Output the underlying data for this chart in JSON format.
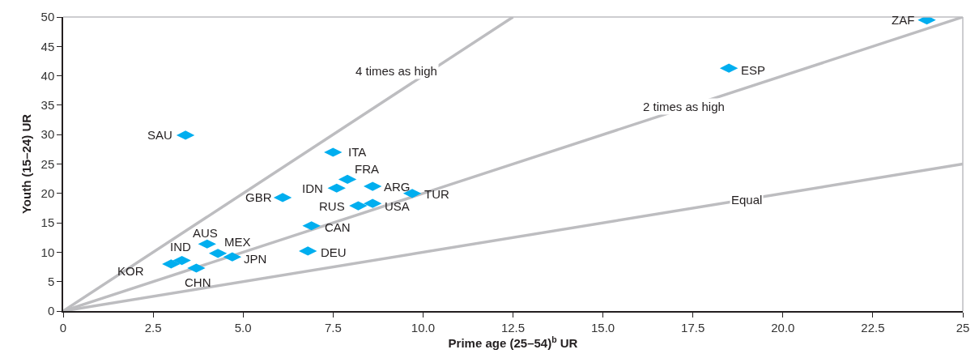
{
  "chart_data": {
    "type": "scatter",
    "xlabel": "Prime age (25–54)$^{b}$ UR",
    "ylabel": "Youth (15–24) UR",
    "xlim": [
      0,
      25
    ],
    "ylim": [
      0,
      50
    ],
    "xticks": [
      0,
      2.5,
      {
        "value": 5,
        "label": "5.0"
      },
      7.5,
      {
        "value": 10,
        "label": "10.0"
      },
      12.5,
      {
        "value": 15,
        "label": "15.0"
      },
      17.5,
      {
        "value": 20,
        "label": "20.0"
      },
      22.5,
      25
    ],
    "yticks": [
      0,
      5,
      10,
      15,
      20,
      25,
      30,
      35,
      40,
      45,
      50
    ],
    "legend": false,
    "series": [
      {
        "type": "line",
        "name": "Equal",
        "color": "#bdbdc0",
        "x": [
          0,
          25
        ],
        "values": [
          0,
          25
        ]
      },
      {
        "type": "line",
        "name": "2 times as high",
        "color": "#bdbdc0",
        "x": [
          0,
          25
        ],
        "values": [
          0,
          50
        ]
      },
      {
        "type": "line",
        "name": "4 times as high",
        "color": "#bdbdc0",
        "x": [
          0,
          12.5
        ],
        "values": [
          0,
          50
        ]
      },
      {
        "color": "#00aeef",
        "marker": "diamond",
        "x": [
          3.4,
          7.5,
          7.9,
          7.6,
          8.6,
          9.7,
          8.2,
          8.6,
          6.1,
          6.9,
          6.8,
          4.0,
          4.3,
          4.7,
          3.3,
          3.7,
          3.0,
          18.5,
          24.0
        ],
        "values": [
          29.9,
          27.0,
          22.4,
          20.9,
          21.2,
          20.0,
          17.9,
          18.3,
          19.3,
          14.5,
          10.2,
          11.4,
          9.8,
          9.2,
          8.6,
          7.3,
          8.0,
          41.3,
          49.5
        ]
      }
    ],
    "annotations": [
      {
        "text": "SAU",
        "x": 3.4,
        "y": 29.9
      },
      {
        "text": "ITA",
        "x": 7.5,
        "y": 27.0
      },
      {
        "text": "FRA",
        "x": 7.9,
        "y": 22.4
      },
      {
        "text": "IDN",
        "x": 7.6,
        "y": 20.9
      },
      {
        "text": "ARG",
        "x": 8.6,
        "y": 21.2
      },
      {
        "text": "TUR",
        "x": 9.7,
        "y": 20.0
      },
      {
        "text": "RUS",
        "x": 8.2,
        "y": 17.9
      },
      {
        "text": "USA",
        "x": 8.6,
        "y": 18.3
      },
      {
        "text": "GBR",
        "x": 6.1,
        "y": 19.3
      },
      {
        "text": "CAN",
        "x": 6.9,
        "y": 14.5
      },
      {
        "text": "DEU",
        "x": 6.8,
        "y": 10.2
      },
      {
        "text": "AUS",
        "x": 4.0,
        "y": 11.4
      },
      {
        "text": "MEX",
        "x": 4.3,
        "y": 9.8
      },
      {
        "text": "JPN",
        "x": 4.7,
        "y": 9.2
      },
      {
        "text": "IND",
        "x": 3.3,
        "y": 8.6
      },
      {
        "text": "CHN",
        "x": 3.7,
        "y": 7.3
      },
      {
        "text": "KOR",
        "x": 3.0,
        "y": 8.0
      },
      {
        "text": "ESP",
        "x": 18.5,
        "y": 41.3
      },
      {
        "text": "ZAF",
        "x": 24.0,
        "y": 49.5
      }
    ]
  }
}
